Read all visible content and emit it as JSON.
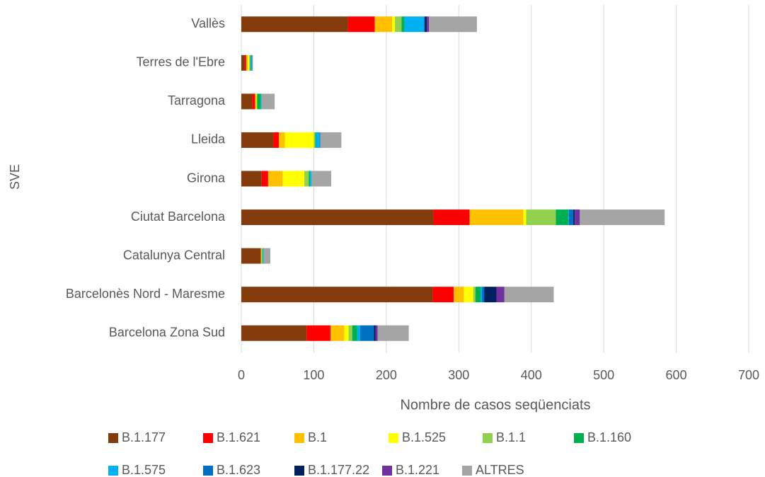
{
  "chart_data": {
    "type": "stacked-bar-horizontal",
    "x_axis_label": "Nombre de casos seqüenciats",
    "y_axis_label": "SVE",
    "categories": [
      "Barcelona Zona Sud",
      "Barcelonès Nord - Maresme",
      "Catalunya Central",
      "Ciutat Barcelona",
      "Girona",
      "Lleida",
      "Tarragona",
      "Terres de l'Ebre",
      "Vallès"
    ],
    "series": [
      {
        "name": "B.1.177",
        "color": "#843c0c",
        "values": [
          90,
          264,
          27,
          265,
          28,
          44,
          15,
          5,
          147
        ]
      },
      {
        "name": "B.1.621",
        "color": "#ff0000",
        "values": [
          33,
          29,
          0,
          50,
          9,
          8,
          4,
          2,
          37
        ]
      },
      {
        "name": "B.1",
        "color": "#ffc000",
        "values": [
          19,
          14,
          1,
          74,
          20,
          8,
          1,
          2,
          24
        ]
      },
      {
        "name": "B.1.525",
        "color": "#ffff00",
        "values": [
          6,
          13,
          0,
          4,
          30,
          40,
          1,
          2,
          4
        ]
      },
      {
        "name": "B.1.1",
        "color": "#92d050",
        "values": [
          5,
          3,
          1,
          41,
          6,
          2,
          1,
          1,
          9
        ]
      },
      {
        "name": "B.1.160",
        "color": "#00b050",
        "values": [
          7,
          7,
          1,
          17,
          2,
          1,
          5,
          1,
          4
        ]
      },
      {
        "name": "B.1.575",
        "color": "#00b0f0",
        "values": [
          4,
          2,
          1,
          1,
          2,
          5,
          1,
          1,
          27
        ]
      },
      {
        "name": "B.1.623",
        "color": "#0070c0",
        "values": [
          19,
          3,
          0,
          6,
          0,
          1,
          0,
          1,
          1
        ]
      },
      {
        "name": "B.1.177.22",
        "color": "#002060",
        "values": [
          2,
          17,
          0,
          2,
          0,
          0,
          0,
          0,
          3
        ]
      },
      {
        "name": "B.1.221",
        "color": "#7030a0",
        "values": [
          3,
          11,
          0,
          7,
          0,
          0,
          0,
          0,
          3
        ]
      },
      {
        "name": "ALTRES",
        "color": "#a5a5a5",
        "values": [
          43,
          68,
          9,
          117,
          27,
          29,
          18,
          1,
          66
        ]
      }
    ],
    "xlim": [
      0,
      700
    ],
    "xticks": [
      0,
      100,
      200,
      300,
      400,
      500,
      600,
      700
    ],
    "grid": true,
    "legend": "bottom"
  }
}
